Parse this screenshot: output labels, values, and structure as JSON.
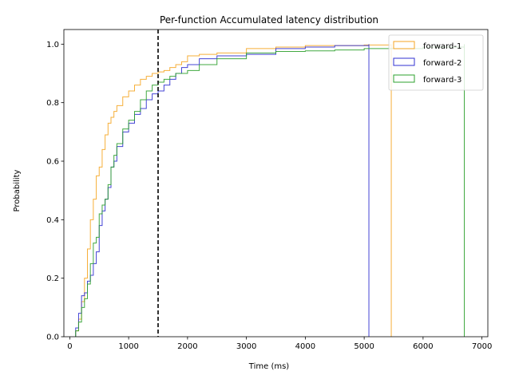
{
  "chart_data": {
    "type": "line",
    "subtype": "cumulative-step-histogram",
    "title": "Per-function Accumulated latency distribution",
    "xlabel": "Time (ms)",
    "ylabel": "Probability",
    "xlim": [
      -100,
      7100
    ],
    "ylim": [
      0,
      1.05
    ],
    "xticks": [
      0,
      1000,
      2000,
      3000,
      4000,
      5000,
      6000,
      7000
    ],
    "xtick_labels": [
      "0",
      "1000",
      "2000",
      "3000",
      "4000",
      "5000",
      "6000",
      "7000"
    ],
    "yticks": [
      0.0,
      0.2,
      0.4,
      0.6,
      0.8,
      1.0
    ],
    "ytick_labels": [
      "0.0",
      "0.2",
      "0.4",
      "0.6",
      "0.8",
      "1.0"
    ],
    "grid": false,
    "legend_position": "top-right",
    "reference_line": {
      "x": 1500,
      "style": "dashed",
      "color": "#000000"
    },
    "series": [
      {
        "name": "forward-1",
        "color": "#f5a623",
        "x": [
          100,
          150,
          200,
          250,
          300,
          350,
          400,
          450,
          500,
          550,
          600,
          650,
          700,
          750,
          800,
          900,
          1000,
          1100,
          1200,
          1300,
          1400,
          1500,
          1600,
          1700,
          1800,
          1900,
          2000,
          2200,
          2500,
          3000,
          3500,
          4000,
          5000,
          5460
        ],
        "y": [
          0.02,
          0.06,
          0.12,
          0.2,
          0.3,
          0.4,
          0.47,
          0.55,
          0.58,
          0.64,
          0.69,
          0.73,
          0.75,
          0.77,
          0.79,
          0.82,
          0.84,
          0.86,
          0.88,
          0.89,
          0.9,
          0.905,
          0.91,
          0.92,
          0.93,
          0.94,
          0.96,
          0.965,
          0.97,
          0.985,
          0.99,
          0.995,
          0.997,
          1.0
        ]
      },
      {
        "name": "forward-2",
        "color": "#3030d0",
        "x": [
          100,
          150,
          200,
          250,
          300,
          350,
          400,
          450,
          500,
          550,
          600,
          650,
          700,
          750,
          800,
          900,
          1000,
          1100,
          1200,
          1300,
          1400,
          1500,
          1600,
          1700,
          1800,
          1900,
          2000,
          2200,
          2500,
          3000,
          3500,
          4000,
          4500,
          5080
        ],
        "y": [
          0.03,
          0.08,
          0.14,
          0.15,
          0.19,
          0.21,
          0.25,
          0.29,
          0.38,
          0.43,
          0.47,
          0.51,
          0.58,
          0.6,
          0.65,
          0.7,
          0.73,
          0.76,
          0.78,
          0.81,
          0.83,
          0.84,
          0.86,
          0.88,
          0.9,
          0.92,
          0.93,
          0.95,
          0.96,
          0.965,
          0.985,
          0.99,
          0.995,
          1.0
        ]
      },
      {
        "name": "forward-3",
        "color": "#2ca02c",
        "x": [
          100,
          150,
          200,
          250,
          300,
          350,
          400,
          450,
          500,
          550,
          600,
          650,
          700,
          750,
          800,
          900,
          1000,
          1100,
          1200,
          1300,
          1400,
          1500,
          1600,
          1700,
          1800,
          1900,
          2000,
          2200,
          2500,
          3000,
          3500,
          4000,
          4500,
          5000,
          6000,
          6700
        ],
        "y": [
          0.02,
          0.05,
          0.1,
          0.13,
          0.18,
          0.25,
          0.32,
          0.34,
          0.42,
          0.45,
          0.47,
          0.52,
          0.58,
          0.62,
          0.66,
          0.71,
          0.74,
          0.77,
          0.81,
          0.84,
          0.86,
          0.87,
          0.88,
          0.89,
          0.9,
          0.9,
          0.91,
          0.93,
          0.95,
          0.97,
          0.975,
          0.977,
          0.98,
          0.985,
          0.99,
          1.0
        ]
      }
    ]
  }
}
